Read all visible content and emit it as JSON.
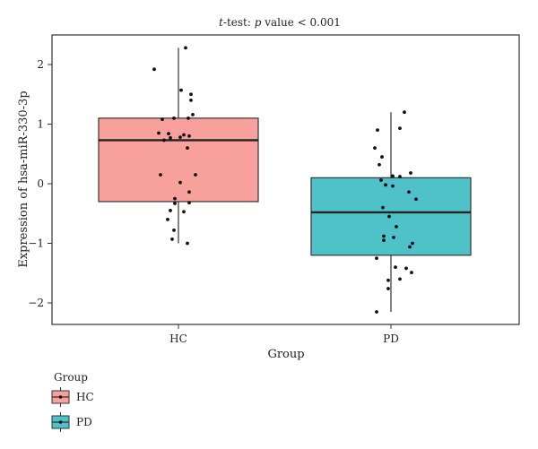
{
  "chart_data": {
    "type": "boxplot",
    "title_prefix": "t",
    "title_mid": "-test: ",
    "title_p": "p",
    "title_suffix": " value < 0.001",
    "xlabel": "Group",
    "ylabel": "Expression of hsa-miR-330-3p",
    "ylim": [
      -2.3,
      2.5
    ],
    "yticks": [
      -2,
      -1,
      0,
      1,
      2
    ],
    "grid": false,
    "legend": {
      "title": "Group",
      "position": "bottom-left"
    },
    "groups": [
      {
        "name": "HC",
        "color": "#f8a19c",
        "box": {
          "whisker_low": -1.0,
          "q1": -0.3,
          "median": 0.73,
          "q3": 1.1,
          "whisker_high": 2.28
        },
        "points": [
          [
            -0.27,
            1.92
          ],
          [
            0.08,
            2.28
          ],
          [
            0.03,
            1.57
          ],
          [
            0.14,
            1.5
          ],
          [
            0.14,
            1.4
          ],
          [
            0.16,
            1.16
          ],
          [
            -0.18,
            1.08
          ],
          [
            -0.05,
            1.1
          ],
          [
            0.11,
            1.1
          ],
          [
            -0.22,
            0.85
          ],
          [
            -0.11,
            0.84
          ],
          [
            0.06,
            0.82
          ],
          [
            0.12,
            0.8
          ],
          [
            -0.16,
            0.73
          ],
          [
            -0.09,
            0.77
          ],
          [
            0.02,
            0.78
          ],
          [
            0.1,
            0.6
          ],
          [
            -0.2,
            0.15
          ],
          [
            0.19,
            0.15
          ],
          [
            0.02,
            0.02
          ],
          [
            0.12,
            -0.14
          ],
          [
            -0.04,
            -0.25
          ],
          [
            -0.04,
            -0.33
          ],
          [
            0.12,
            -0.32
          ],
          [
            -0.09,
            -0.45
          ],
          [
            0.06,
            -0.47
          ],
          [
            -0.12,
            -0.6
          ],
          [
            -0.05,
            -0.78
          ],
          [
            -0.07,
            -0.93
          ],
          [
            0.1,
            -1.0
          ]
        ]
      },
      {
        "name": "PD",
        "color": "#4fc2c9",
        "box": {
          "whisker_low": -2.15,
          "q1": -1.2,
          "median": -0.48,
          "q3": 0.1,
          "whisker_high": 1.2
        },
        "points": [
          [
            0.15,
            1.2
          ],
          [
            0.1,
            0.93
          ],
          [
            -0.15,
            0.9
          ],
          [
            -0.18,
            0.6
          ],
          [
            -0.1,
            0.45
          ],
          [
            -0.13,
            0.32
          ],
          [
            0.02,
            0.13
          ],
          [
            0.1,
            0.12
          ],
          [
            0.22,
            0.18
          ],
          [
            -0.11,
            0.06
          ],
          [
            -0.06,
            -0.02
          ],
          [
            0.02,
            -0.04
          ],
          [
            0.2,
            -0.14
          ],
          [
            0.28,
            -0.26
          ],
          [
            -0.09,
            -0.4
          ],
          [
            -0.02,
            -0.55
          ],
          [
            0.06,
            -0.72
          ],
          [
            -0.08,
            -0.88
          ],
          [
            0.03,
            -0.9
          ],
          [
            -0.08,
            -0.95
          ],
          [
            0.24,
            -1.0
          ],
          [
            0.21,
            -1.06
          ],
          [
            -0.16,
            -1.25
          ],
          [
            0.05,
            -1.4
          ],
          [
            0.17,
            -1.42
          ],
          [
            0.23,
            -1.49
          ],
          [
            0.1,
            -1.6
          ],
          [
            -0.03,
            -1.62
          ],
          [
            -0.03,
            -1.76
          ],
          [
            -0.16,
            -2.15
          ]
        ]
      }
    ]
  }
}
